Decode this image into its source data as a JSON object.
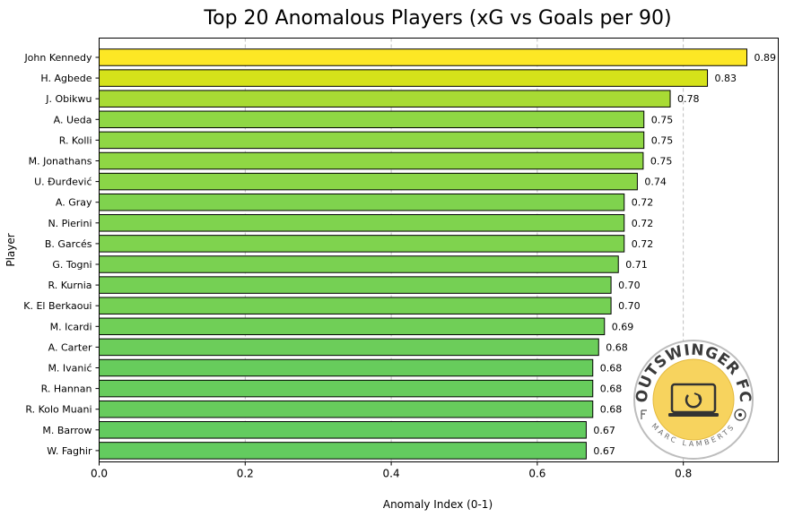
{
  "chart_data": {
    "type": "bar",
    "orientation": "horizontal",
    "title": "Top 20 Anomalous Players (xG vs Goals per 90)",
    "xlabel": "Anomaly Index (0-1)",
    "ylabel": "Player",
    "xlim": [
      0,
      0.93
    ],
    "xticks": [
      "0.0",
      "0.2",
      "0.4",
      "0.6",
      "0.8"
    ],
    "grid": "x-dashed",
    "categories": [
      "John Kennedy",
      "H. Agbede",
      "J. Obikwu",
      "A. Ueda",
      "R. Kolli",
      "M. Jonathans",
      "U. Đurđević",
      "A. Gray",
      "N. Pierini",
      "B. Garcés",
      "G. Togni",
      "R. Kurnia",
      "K. El Berkaoui",
      "M. Icardi",
      "A. Carter",
      "M. Ivanić",
      "R. Hannan",
      "R. Kolo Muani",
      "M. Barrow",
      "W. Faghir"
    ],
    "values": [
      0.887,
      0.833,
      0.782,
      0.746,
      0.746,
      0.745,
      0.737,
      0.719,
      0.719,
      0.719,
      0.711,
      0.701,
      0.701,
      0.692,
      0.684,
      0.676,
      0.676,
      0.676,
      0.667,
      0.667
    ],
    "value_labels": [
      "0.89",
      "0.83",
      "0.78",
      "0.75",
      "0.75",
      "0.75",
      "0.74",
      "0.72",
      "0.72",
      "0.72",
      "0.71",
      "0.70",
      "0.70",
      "0.69",
      "0.68",
      "0.68",
      "0.68",
      "0.68",
      "0.67",
      "0.67"
    ],
    "colors": [
      "#fde725",
      "#d5e21a",
      "#a8db34",
      "#8fd744",
      "#8fd744",
      "#8fd744",
      "#8ad547",
      "#7fd34e",
      "#7fd34e",
      "#7fd34e",
      "#7ad151",
      "#75d054",
      "#75d054",
      "#70cf57",
      "#6ccd5a",
      "#67cc5c",
      "#67cc5c",
      "#67cc5c",
      "#63cb5f",
      "#63cb5f"
    ],
    "color_scale": "viridis"
  },
  "logo": {
    "name": "OUTSWINGER FC",
    "author": "MARC LAMBERTS",
    "ring_color": "#c8c8c8",
    "fill_color": "#f7d35e",
    "text_color": "#3a3a3a"
  }
}
